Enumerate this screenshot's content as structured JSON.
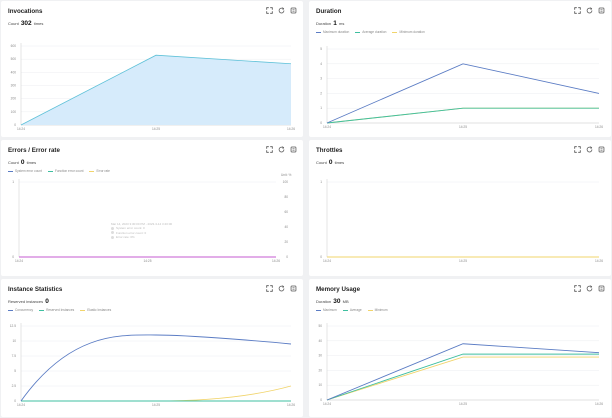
{
  "panels": {
    "invocations": {
      "title": "Invocations",
      "metric_label": "Count",
      "metric_value": "302",
      "metric_unit": "times"
    },
    "duration": {
      "title": "Duration",
      "metric_label": "Duration",
      "metric_value": "1",
      "metric_unit": "ms",
      "legend": [
        "Maximum duration",
        "Average duration",
        "Minimum duration"
      ]
    },
    "errors": {
      "title": "Errors / Error rate",
      "metric_label": "Count",
      "metric_value": "0",
      "metric_unit": "times",
      "legend": [
        "System error count",
        "Function error count",
        "Error rate"
      ],
      "right_axis_label": "Unit: %",
      "tooltip": {
        "title": "Mar 14, 2023 3:30:00 PM - 2023-3-14 3:40:00",
        "rows": [
          "System error count: 0",
          "Function error count: 0",
          "Error rate: 0%"
        ]
      }
    },
    "throttles": {
      "title": "Throttles",
      "metric_label": "Count",
      "metric_value": "0",
      "metric_unit": "times"
    },
    "instances": {
      "title": "Instance Statistics",
      "metric_label": "Reserved instances",
      "metric_value": "0",
      "metric_unit": "",
      "legend": [
        "Concurrency",
        "Reserved Instances",
        "Elastic Instances"
      ]
    },
    "memory": {
      "title": "Memory Usage",
      "metric_label": "Duration",
      "metric_value": "30",
      "metric_unit": "MB",
      "legend": [
        "Maximum",
        "Average",
        "Minimum"
      ]
    }
  },
  "icons": [
    "fullscreen-icon",
    "refresh-icon",
    "settings-icon"
  ],
  "colors": {
    "blue": "#5b7cc4",
    "teal": "#3fbfa0",
    "yellow": "#f1d46b",
    "purple": "#c45bd1",
    "area_fill": "#d6ebfb",
    "area_line": "#5ec1d8"
  },
  "chart_data": [
    {
      "type": "area",
      "x": [
        "14:24",
        "14:25",
        "14:26"
      ],
      "series": [
        {
          "values": [
            0,
            530,
            465
          ]
        }
      ],
      "yticks": [
        "0",
        "100",
        "200",
        "300",
        "400",
        "500",
        "600"
      ],
      "ylim": [
        0,
        600
      ]
    },
    {
      "type": "line",
      "x": [
        "14:24",
        "14:25",
        "14:26"
      ],
      "series": [
        {
          "name": "Maximum duration",
          "values": [
            0,
            4,
            2
          ]
        },
        {
          "name": "Average duration",
          "values": [
            0,
            1,
            1
          ]
        },
        {
          "name": "Minimum duration",
          "values": [
            0,
            1,
            1
          ]
        }
      ],
      "yticks": [
        "0",
        "1",
        "2",
        "3",
        "4",
        "5"
      ],
      "ylim": [
        0,
        5
      ]
    },
    {
      "type": "line",
      "x": [
        "14:24",
        "14:25",
        "14:26"
      ],
      "series": [
        {
          "name": "System error count",
          "values": [
            0,
            0,
            0
          ]
        },
        {
          "name": "Function error count",
          "values": [
            0,
            0,
            0
          ]
        },
        {
          "name": "Error rate",
          "values": [
            0,
            0,
            0
          ]
        }
      ],
      "yticks": [
        "0",
        "1"
      ],
      "ylim": [
        0,
        1
      ],
      "y2ticks": [
        "0",
        "20",
        "40",
        "60",
        "80",
        "100"
      ],
      "y2lim": [
        0,
        100
      ]
    },
    {
      "type": "line",
      "x": [
        "14:24",
        "14:25",
        "14:26"
      ],
      "series": [
        {
          "values": [
            0,
            0,
            0
          ]
        }
      ],
      "yticks": [
        "0",
        "1"
      ],
      "ylim": [
        0,
        1
      ]
    },
    {
      "type": "line",
      "x": [
        "14:24",
        "14:25",
        "14:26"
      ],
      "series": [
        {
          "name": "Concurrency",
          "values": [
            0,
            11,
            9.5
          ]
        },
        {
          "name": "Reserved Instances",
          "values": [
            0,
            0,
            0
          ]
        },
        {
          "name": "Elastic Instances",
          "values": [
            0,
            0,
            2.5
          ]
        }
      ],
      "yticks": [
        "0",
        "2.5",
        "5",
        "7.5",
        "10",
        "12.5"
      ],
      "ylim": [
        0,
        12.5
      ]
    },
    {
      "type": "line",
      "x": [
        "14:24",
        "14:25",
        "14:26"
      ],
      "series": [
        {
          "name": "Maximum",
          "values": [
            0,
            38,
            32
          ]
        },
        {
          "name": "Average",
          "values": [
            0,
            31,
            31
          ]
        },
        {
          "name": "Minimum",
          "values": [
            0,
            29,
            29
          ]
        }
      ],
      "yticks": [
        "0",
        "10",
        "20",
        "30",
        "40",
        "50"
      ],
      "ylim": [
        0,
        50
      ]
    }
  ]
}
